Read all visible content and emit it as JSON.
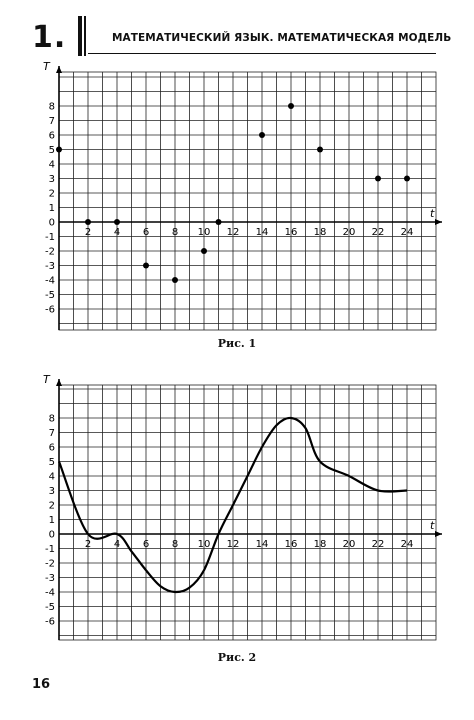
{
  "header": {
    "chapter_number": "1.",
    "title": "МАТЕМАТИЧЕСКИЙ ЯЗЫК. МАТЕМАТИЧЕСКАЯ МОДЕЛЬ"
  },
  "page_number": "16",
  "chart_data": [
    {
      "type": "scatter",
      "caption": "Рис. 1",
      "xlabel": "t",
      "ylabel": "T",
      "xlim": [
        0,
        26
      ],
      "ylim": [
        -7,
        10
      ],
      "x_ticks": [
        2,
        4,
        6,
        8,
        10,
        12,
        14,
        16,
        18,
        20,
        22,
        24
      ],
      "y_ticks": [
        -6,
        -5,
        -4,
        -3,
        -2,
        -1,
        0,
        1,
        2,
        3,
        4,
        5,
        6,
        7,
        8
      ],
      "grid": true,
      "series": [
        {
          "x": [
            0,
            2,
            4,
            6,
            8,
            10,
            11,
            14,
            16,
            18,
            22,
            24
          ],
          "y": [
            5,
            0,
            0,
            -3,
            -4,
            -2,
            0,
            6,
            8,
            5,
            3,
            3
          ]
        }
      ]
    },
    {
      "type": "line",
      "caption": "Рис. 2",
      "xlabel": "t",
      "ylabel": "T",
      "xlim": [
        0,
        26
      ],
      "ylim": [
        -7,
        10
      ],
      "x_ticks": [
        2,
        4,
        6,
        8,
        10,
        12,
        14,
        16,
        18,
        20,
        22,
        24
      ],
      "y_ticks": [
        -6,
        -5,
        -4,
        -3,
        -2,
        -1,
        0,
        1,
        2,
        3,
        4,
        5,
        6,
        7,
        8
      ],
      "grid": true,
      "series": [
        {
          "x": [
            0,
            2,
            4,
            5,
            6,
            7,
            8,
            9,
            10,
            11,
            12,
            13,
            14,
            15,
            16,
            17,
            18,
            20,
            22,
            24
          ],
          "y": [
            5,
            0,
            0,
            -1.2,
            -2.5,
            -3.6,
            -4,
            -3.7,
            -2.5,
            0,
            2,
            4,
            6,
            7.5,
            8,
            7.3,
            5,
            4,
            3,
            3
          ]
        }
      ]
    }
  ]
}
